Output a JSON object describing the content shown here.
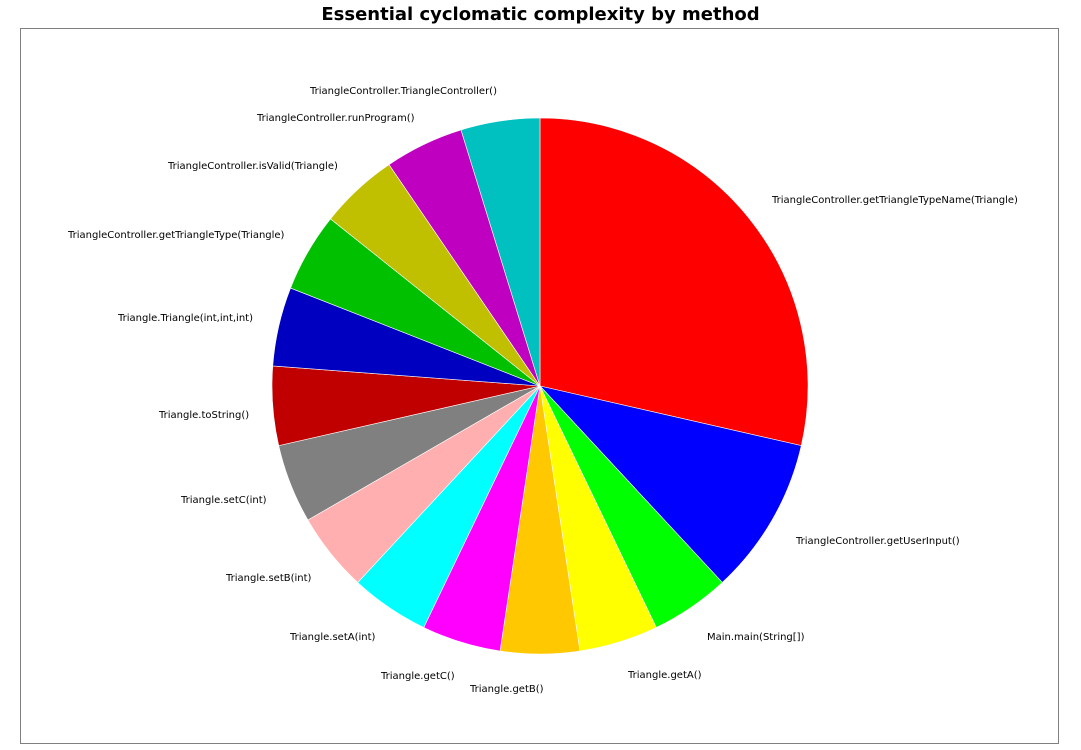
{
  "chart_data": {
    "type": "pie",
    "title": "Essential cyclomatic complexity by method",
    "legend": "none",
    "slices": [
      {
        "label": "TriangleController.getTriangleTypeName(Triangle)",
        "value": 6,
        "color": "#ff0000"
      },
      {
        "label": "TriangleController.getUserInput()",
        "value": 2,
        "color": "#0000ff"
      },
      {
        "label": "Main.main(String[])",
        "value": 1,
        "color": "#00ff00"
      },
      {
        "label": "Triangle.getA()",
        "value": 1,
        "color": "#ffff00"
      },
      {
        "label": "Triangle.getB()",
        "value": 1,
        "color": "#ffc800"
      },
      {
        "label": "Triangle.getC()",
        "value": 1,
        "color": "#ff00ff"
      },
      {
        "label": "Triangle.setA(int)",
        "value": 1,
        "color": "#00ffff"
      },
      {
        "label": "Triangle.setB(int)",
        "value": 1,
        "color": "#ffafaf"
      },
      {
        "label": "Triangle.setC(int)",
        "value": 1,
        "color": "#808080"
      },
      {
        "label": "Triangle.toString()",
        "value": 1,
        "color": "#c00000"
      },
      {
        "label": "Triangle.Triangle(int,int,int)",
        "value": 1,
        "color": "#0000c0"
      },
      {
        "label": "TriangleController.getTriangleType(Triangle)",
        "value": 1,
        "color": "#00c000"
      },
      {
        "label": "TriangleController.isValid(Triangle)",
        "value": 1,
        "color": "#c0c000"
      },
      {
        "label": "TriangleController.runProgram()",
        "value": 1,
        "color": "#c000c0"
      },
      {
        "label": "TriangleController.TriangleController()",
        "value": 1,
        "color": "#00c0c0"
      }
    ]
  }
}
